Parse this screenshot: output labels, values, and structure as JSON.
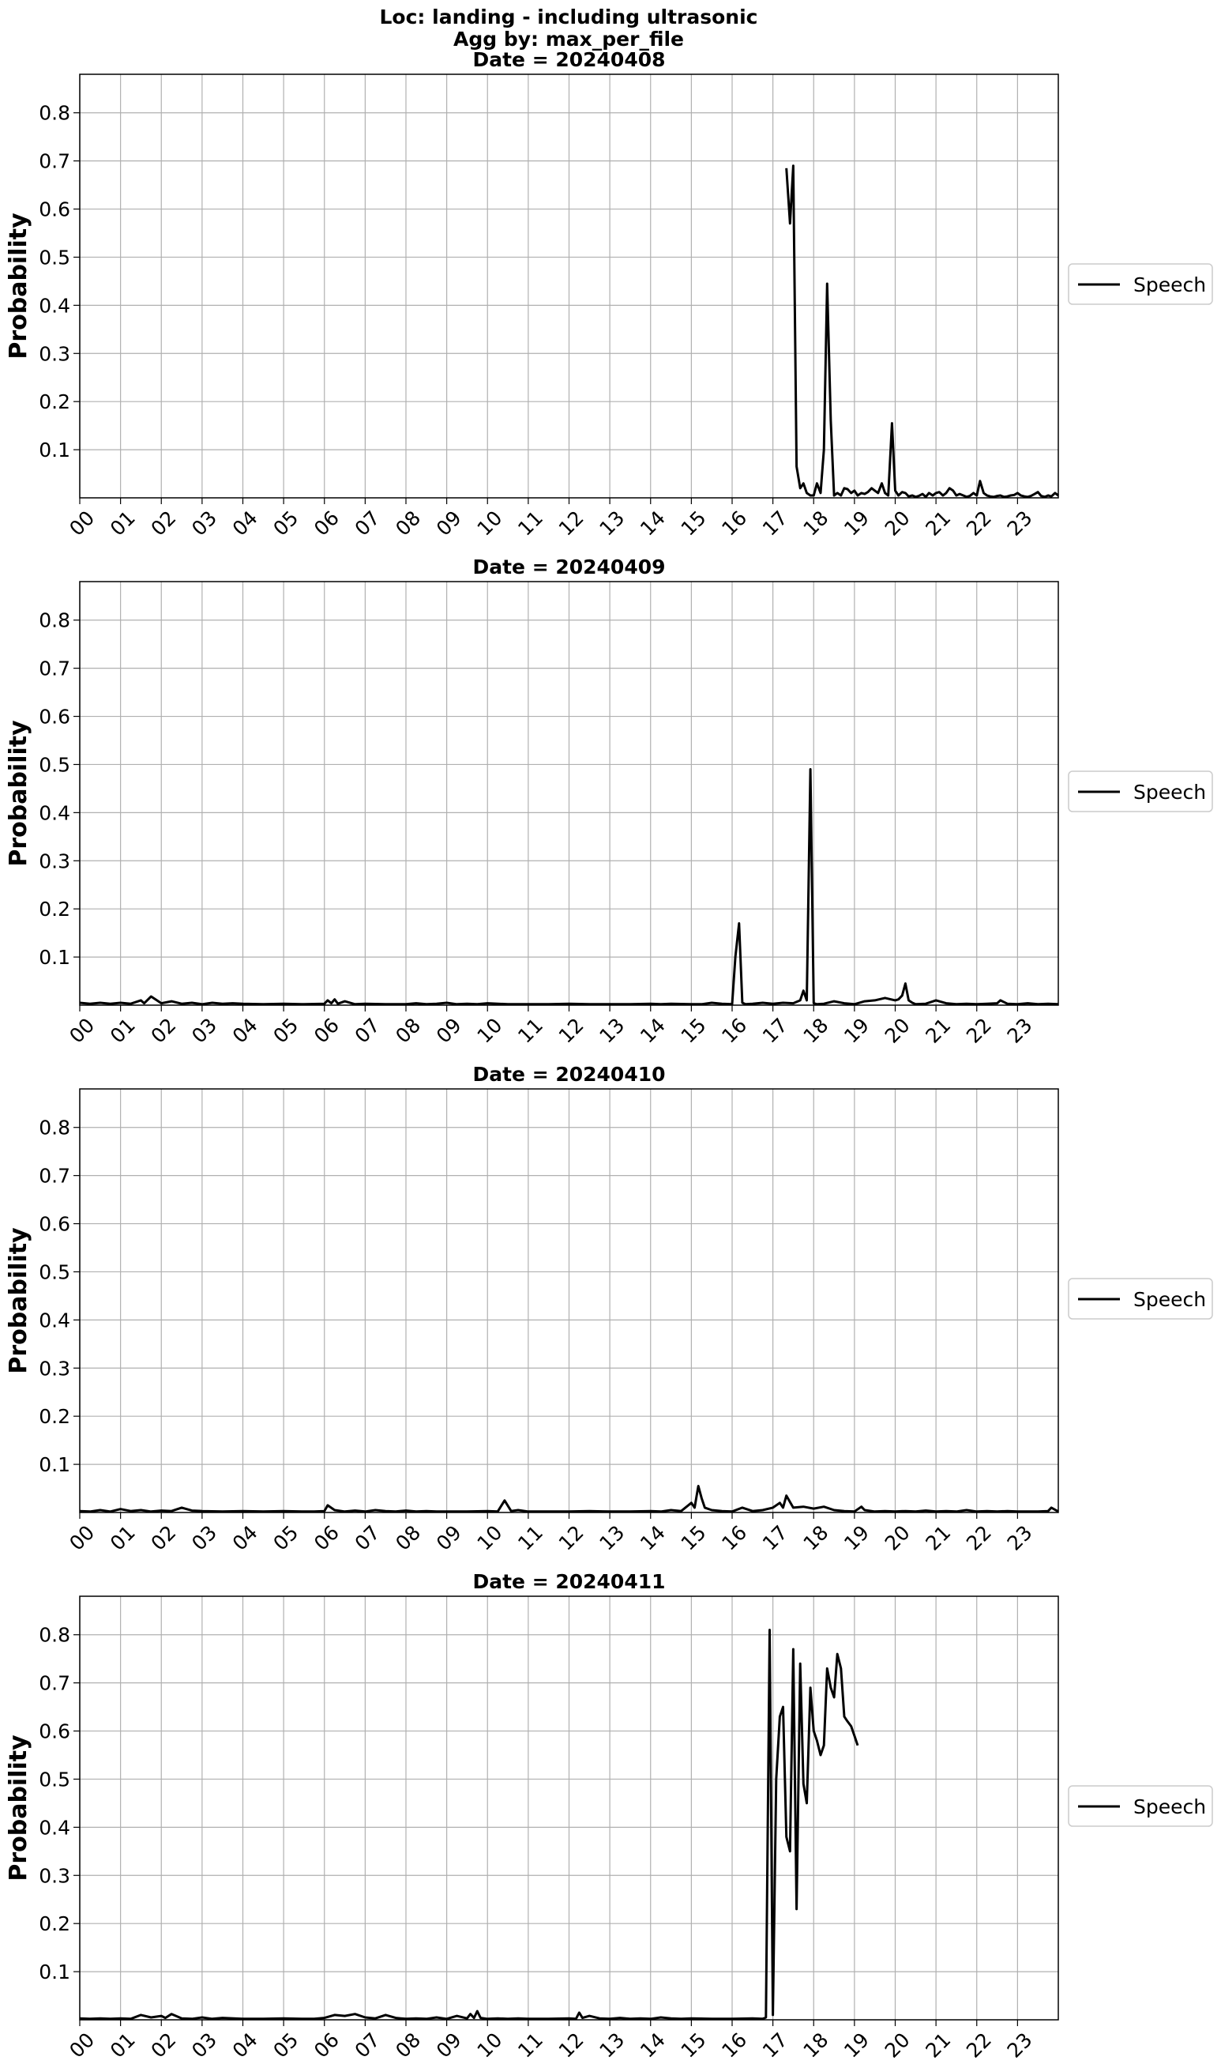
{
  "figure": {
    "title_lines": [
      "Loc: landing - including ultrasonic",
      "Agg by: max_per_file"
    ]
  },
  "chart_data": [
    {
      "type": "line",
      "title": "Date = 20240408",
      "xlabel": "",
      "ylabel": "Probability",
      "ylim": [
        0,
        0.88
      ],
      "xlim": [
        0,
        24
      ],
      "yticks": [
        "0.1",
        "0.2",
        "0.3",
        "0.4",
        "0.5",
        "0.6",
        "0.7",
        "0.8"
      ],
      "xticks": [
        "00",
        "01",
        "02",
        "03",
        "04",
        "05",
        "06",
        "07",
        "08",
        "09",
        "10",
        "11",
        "12",
        "13",
        "14",
        "15",
        "16",
        "17",
        "18",
        "19",
        "20",
        "21",
        "22",
        "23"
      ],
      "grid": true,
      "legend_placement": "right",
      "series": [
        {
          "name": "Speech",
          "color": "#000000",
          "x": [
            17.33,
            17.42,
            17.5,
            17.58,
            17.67,
            17.75,
            17.83,
            17.92,
            18.0,
            18.08,
            18.17,
            18.25,
            18.33,
            18.42,
            18.5,
            18.58,
            18.67,
            18.75,
            18.83,
            18.92,
            19.0,
            19.08,
            19.17,
            19.25,
            19.33,
            19.42,
            19.5,
            19.58,
            19.67,
            19.75,
            19.83,
            19.92,
            20.0,
            20.08,
            20.17,
            20.25,
            20.33,
            20.42,
            20.5,
            20.58,
            20.67,
            20.75,
            20.83,
            20.92,
            21.0,
            21.08,
            21.17,
            21.25,
            21.33,
            21.42,
            21.5,
            21.58,
            21.67,
            21.75,
            21.83,
            21.92,
            22.0,
            22.08,
            22.17,
            22.25,
            22.33,
            22.42,
            22.5,
            22.58,
            22.67,
            22.75,
            22.83,
            22.92,
            23.0,
            23.08,
            23.17,
            23.25,
            23.33,
            23.42,
            23.5,
            23.58,
            23.67,
            23.75,
            23.83,
            23.92,
            24.0
          ],
          "y": [
            0.685,
            0.57,
            0.69,
            0.065,
            0.02,
            0.03,
            0.01,
            0.005,
            0.005,
            0.03,
            0.01,
            0.1,
            0.445,
            0.16,
            0.005,
            0.01,
            0.005,
            0.02,
            0.018,
            0.01,
            0.015,
            0.005,
            0.01,
            0.008,
            0.012,
            0.02,
            0.015,
            0.01,
            0.03,
            0.01,
            0.005,
            0.155,
            0.015,
            0.005,
            0.012,
            0.01,
            0.003,
            0.005,
            0.002,
            0.004,
            0.008,
            0.002,
            0.01,
            0.005,
            0.01,
            0.012,
            0.005,
            0.01,
            0.02,
            0.015,
            0.005,
            0.008,
            0.005,
            0.002,
            0.004,
            0.01,
            0.005,
            0.035,
            0.01,
            0.005,
            0.003,
            0.002,
            0.004,
            0.005,
            0.002,
            0.003,
            0.005,
            0.006,
            0.01,
            0.005,
            0.003,
            0.002,
            0.004,
            0.008,
            0.012,
            0.004,
            0.002,
            0.005,
            0.003,
            0.01,
            0.005
          ]
        }
      ]
    },
    {
      "type": "line",
      "title": "Date = 20240409",
      "xlabel": "",
      "ylabel": "Probability",
      "ylim": [
        0,
        0.88
      ],
      "xlim": [
        0,
        24
      ],
      "yticks": [
        "0.1",
        "0.2",
        "0.3",
        "0.4",
        "0.5",
        "0.6",
        "0.7",
        "0.8"
      ],
      "xticks": [
        "00",
        "01",
        "02",
        "03",
        "04",
        "05",
        "06",
        "07",
        "08",
        "09",
        "10",
        "11",
        "12",
        "13",
        "14",
        "15",
        "16",
        "17",
        "18",
        "19",
        "20",
        "21",
        "22",
        "23"
      ],
      "grid": true,
      "legend_placement": "right",
      "series": [
        {
          "name": "Speech",
          "color": "#000000",
          "x": [
            0,
            0.25,
            0.5,
            0.75,
            1.0,
            1.25,
            1.5,
            1.58,
            1.75,
            2.0,
            2.25,
            2.5,
            2.75,
            3.0,
            3.25,
            3.5,
            3.75,
            4.0,
            4.5,
            5.0,
            5.5,
            6.0,
            6.08,
            6.17,
            6.25,
            6.33,
            6.5,
            6.75,
            7.0,
            7.5,
            8.0,
            8.25,
            8.5,
            8.75,
            9.0,
            9.25,
            9.5,
            9.75,
            10.0,
            10.5,
            11.0,
            11.5,
            12.0,
            12.5,
            13.0,
            13.5,
            14.0,
            14.25,
            14.5,
            15.0,
            15.25,
            15.5,
            15.75,
            16.0,
            16.08,
            16.17,
            16.25,
            16.33,
            16.5,
            16.75,
            17.0,
            17.25,
            17.5,
            17.67,
            17.75,
            17.83,
            17.92,
            18.0,
            18.08,
            18.25,
            18.5,
            18.75,
            19.0,
            19.25,
            19.5,
            19.75,
            20.0,
            20.08,
            20.17,
            20.25,
            20.33,
            20.42,
            20.5,
            20.75,
            21.0,
            21.25,
            21.5,
            21.75,
            22.0,
            22.25,
            22.5,
            22.58,
            22.75,
            23.0,
            23.25,
            23.5,
            23.75,
            24.0
          ],
          "y": [
            0.005,
            0.003,
            0.005,
            0.003,
            0.005,
            0.003,
            0.01,
            0.004,
            0.018,
            0.004,
            0.008,
            0.003,
            0.005,
            0.002,
            0.005,
            0.003,
            0.004,
            0.003,
            0.002,
            0.003,
            0.002,
            0.003,
            0.01,
            0.004,
            0.012,
            0.003,
            0.008,
            0.002,
            0.003,
            0.002,
            0.002,
            0.004,
            0.002,
            0.003,
            0.005,
            0.002,
            0.003,
            0.002,
            0.004,
            0.002,
            0.002,
            0.002,
            0.003,
            0.002,
            0.002,
            0.002,
            0.003,
            0.002,
            0.003,
            0.002,
            0.002,
            0.005,
            0.003,
            0.002,
            0.1,
            0.17,
            0.005,
            0.002,
            0.003,
            0.005,
            0.003,
            0.005,
            0.004,
            0.01,
            0.03,
            0.01,
            0.49,
            0.004,
            0.002,
            0.003,
            0.008,
            0.004,
            0.002,
            0.008,
            0.01,
            0.015,
            0.01,
            0.012,
            0.02,
            0.045,
            0.01,
            0.005,
            0.002,
            0.003,
            0.01,
            0.004,
            0.002,
            0.003,
            0.002,
            0.003,
            0.004,
            0.01,
            0.003,
            0.002,
            0.004,
            0.002,
            0.003,
            0.002
          ]
        }
      ]
    },
    {
      "type": "line",
      "title": "Date = 20240410",
      "xlabel": "",
      "ylabel": "Probability",
      "ylim": [
        0,
        0.88
      ],
      "xlim": [
        0,
        24
      ],
      "yticks": [
        "0.1",
        "0.2",
        "0.3",
        "0.4",
        "0.5",
        "0.6",
        "0.7",
        "0.8"
      ],
      "xticks": [
        "00",
        "01",
        "02",
        "03",
        "04",
        "05",
        "06",
        "07",
        "08",
        "09",
        "10",
        "11",
        "12",
        "13",
        "14",
        "15",
        "16",
        "17",
        "18",
        "19",
        "20",
        "21",
        "22",
        "23"
      ],
      "grid": true,
      "legend_placement": "right",
      "series": [
        {
          "name": "Speech",
          "color": "#000000",
          "x": [
            0,
            0.25,
            0.5,
            0.75,
            1.0,
            1.25,
            1.5,
            1.75,
            2.0,
            2.25,
            2.5,
            2.75,
            3.0,
            3.5,
            4.0,
            4.5,
            5.0,
            5.5,
            5.75,
            6.0,
            6.08,
            6.25,
            6.5,
            6.75,
            7.0,
            7.25,
            7.5,
            7.75,
            8.0,
            8.25,
            8.5,
            8.75,
            9.0,
            9.5,
            10.0,
            10.25,
            10.42,
            10.58,
            10.75,
            11.0,
            11.5,
            12.0,
            12.5,
            13.0,
            13.5,
            14.0,
            14.25,
            14.5,
            14.75,
            15.0,
            15.08,
            15.17,
            15.25,
            15.33,
            15.5,
            15.75,
            16.0,
            16.25,
            16.5,
            16.75,
            17.0,
            17.17,
            17.25,
            17.33,
            17.5,
            17.75,
            18.0,
            18.25,
            18.5,
            18.75,
            19.0,
            19.17,
            19.25,
            19.5,
            19.75,
            20.0,
            20.25,
            20.5,
            20.75,
            21.0,
            21.25,
            21.5,
            21.75,
            22.0,
            22.25,
            22.5,
            22.75,
            23.0,
            23.25,
            23.5,
            23.75,
            23.83,
            24.0
          ],
          "y": [
            0.003,
            0.002,
            0.005,
            0.002,
            0.007,
            0.003,
            0.005,
            0.002,
            0.004,
            0.003,
            0.01,
            0.004,
            0.003,
            0.002,
            0.003,
            0.002,
            0.003,
            0.002,
            0.002,
            0.003,
            0.015,
            0.005,
            0.002,
            0.004,
            0.002,
            0.005,
            0.003,
            0.002,
            0.004,
            0.002,
            0.003,
            0.002,
            0.002,
            0.002,
            0.003,
            0.002,
            0.025,
            0.003,
            0.005,
            0.002,
            0.002,
            0.002,
            0.003,
            0.002,
            0.002,
            0.003,
            0.002,
            0.005,
            0.003,
            0.02,
            0.01,
            0.055,
            0.03,
            0.01,
            0.005,
            0.003,
            0.002,
            0.01,
            0.003,
            0.005,
            0.01,
            0.02,
            0.01,
            0.035,
            0.01,
            0.012,
            0.008,
            0.012,
            0.005,
            0.003,
            0.002,
            0.012,
            0.005,
            0.002,
            0.003,
            0.002,
            0.003,
            0.002,
            0.004,
            0.002,
            0.003,
            0.002,
            0.005,
            0.002,
            0.003,
            0.002,
            0.003,
            0.002,
            0.002,
            0.002,
            0.003,
            0.01,
            0.002
          ]
        }
      ]
    },
    {
      "type": "line",
      "title": "Date = 20240411",
      "xlabel": "",
      "ylabel": "Probability",
      "ylim": [
        0,
        0.88
      ],
      "xlim": [
        0,
        24
      ],
      "yticks": [
        "0.1",
        "0.2",
        "0.3",
        "0.4",
        "0.5",
        "0.6",
        "0.7",
        "0.8"
      ],
      "xticks": [
        "00",
        "01",
        "02",
        "03",
        "04",
        "05",
        "06",
        "07",
        "08",
        "09",
        "10",
        "11",
        "12",
        "13",
        "14",
        "15",
        "16",
        "17",
        "18",
        "19",
        "20",
        "21",
        "22",
        "23"
      ],
      "grid": true,
      "legend_placement": "right",
      "series": [
        {
          "name": "Speech",
          "color": "#000000",
          "x": [
            0,
            0.25,
            0.5,
            0.75,
            1.0,
            1.25,
            1.5,
            1.75,
            2.0,
            2.1,
            2.25,
            2.5,
            2.75,
            3.0,
            3.25,
            3.5,
            4.0,
            4.5,
            5.0,
            5.5,
            5.75,
            6.0,
            6.25,
            6.5,
            6.75,
            7.0,
            7.25,
            7.5,
            7.75,
            8.0,
            8.25,
            8.5,
            8.75,
            9.0,
            9.25,
            9.5,
            9.58,
            9.67,
            9.75,
            9.83,
            10.0,
            10.25,
            10.5,
            10.75,
            11.0,
            11.5,
            12.0,
            12.17,
            12.25,
            12.33,
            12.5,
            12.75,
            13.0,
            13.25,
            13.5,
            13.75,
            14.0,
            14.25,
            14.5,
            14.75,
            15.0,
            15.5,
            16.0,
            16.5,
            16.75,
            16.83,
            16.92,
            17.0,
            17.08,
            17.17,
            17.25,
            17.33,
            17.42,
            17.5,
            17.58,
            17.67,
            17.75,
            17.83,
            17.92,
            18.0,
            18.08,
            18.17,
            18.25,
            18.33,
            18.42,
            18.5,
            18.58,
            18.67,
            18.75,
            18.83,
            18.92,
            19.0,
            19.08
          ],
          "y": [
            0.003,
            0.002,
            0.003,
            0.002,
            0.003,
            0.002,
            0.01,
            0.005,
            0.008,
            0.004,
            0.012,
            0.003,
            0.002,
            0.005,
            0.002,
            0.004,
            0.002,
            0.002,
            0.003,
            0.002,
            0.002,
            0.004,
            0.01,
            0.008,
            0.012,
            0.005,
            0.003,
            0.01,
            0.004,
            0.002,
            0.003,
            0.002,
            0.005,
            0.002,
            0.008,
            0.003,
            0.012,
            0.004,
            0.018,
            0.004,
            0.002,
            0.003,
            0.002,
            0.003,
            0.002,
            0.002,
            0.003,
            0.002,
            0.015,
            0.004,
            0.008,
            0.003,
            0.002,
            0.004,
            0.002,
            0.003,
            0.002,
            0.005,
            0.003,
            0.002,
            0.003,
            0.002,
            0.002,
            0.003,
            0.002,
            0.005,
            0.81,
            0.01,
            0.5,
            0.63,
            0.65,
            0.38,
            0.35,
            0.77,
            0.23,
            0.74,
            0.49,
            0.45,
            0.69,
            0.6,
            0.58,
            0.55,
            0.57,
            0.73,
            0.69,
            0.67,
            0.76,
            0.73,
            0.63,
            0.62,
            0.61,
            0.59,
            0.57
          ]
        }
      ]
    }
  ]
}
